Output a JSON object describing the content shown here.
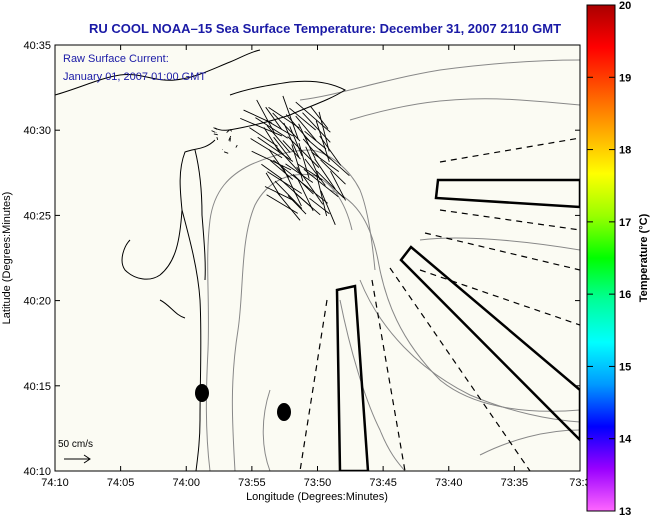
{
  "title": "RU COOL  NOAA–15  Sea Surface Temperature:  December 31, 2007 2110 GMT",
  "legend": {
    "line1": "Raw Surface Current:",
    "line2": "January 01, 2007 01:00 GMT"
  },
  "axes": {
    "xlabel": "Longitude (Degrees:Minutes)",
    "ylabel": "Latitude (Degrees:Minutes)",
    "x_ticks": [
      "74:10",
      "74:05",
      "74:00",
      "73:55",
      "73:50",
      "73:45",
      "73:40",
      "73:35",
      "73:3"
    ],
    "y_ticks": [
      "40:35",
      "40:30",
      "40:25",
      "40:20",
      "40:15",
      "40:10"
    ]
  },
  "colorbar": {
    "label": "Temperature (°C)",
    "ticks": [
      "20",
      "19",
      "18",
      "17",
      "16",
      "15",
      "14",
      "13"
    ],
    "min": 13,
    "max": 20,
    "colors": [
      "#ff66ff",
      "#9900ff",
      "#0000ff",
      "#0099ff",
      "#00ffff",
      "#00ff99",
      "#00ff00",
      "#99ff00",
      "#ffff00",
      "#ffaa00",
      "#ff5500",
      "#ff0000",
      "#aa0000"
    ]
  },
  "scale_label": "50 cm/s",
  "colors": {
    "text": "#1a1aa6",
    "ocean": "#fbfbf3"
  }
}
